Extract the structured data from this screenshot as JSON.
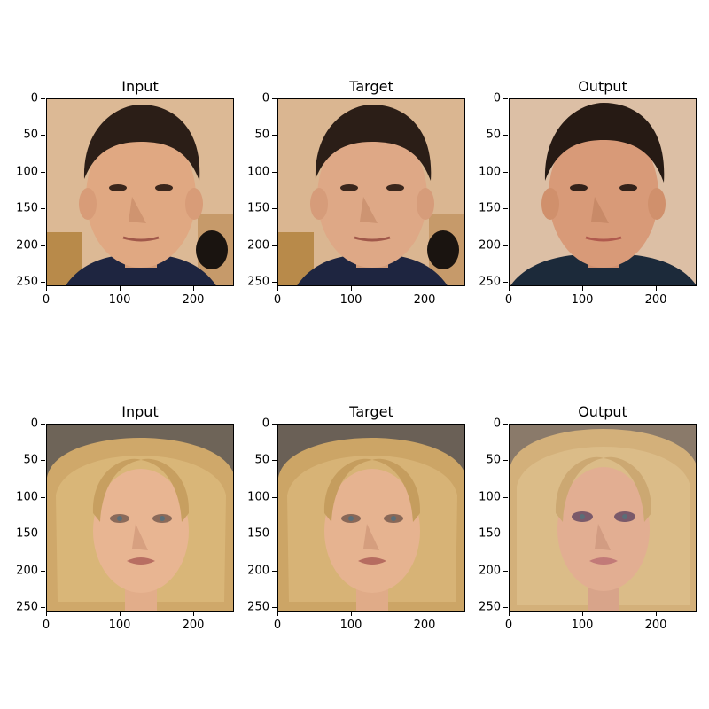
{
  "panels": [
    {
      "title": "Input",
      "subject": "man-portrait"
    },
    {
      "title": "Target",
      "subject": "man-portrait"
    },
    {
      "title": "Output",
      "subject": "man-portrait-generated"
    },
    {
      "title": "Input",
      "subject": "woman-portrait"
    },
    {
      "title": "Target",
      "subject": "woman-portrait"
    },
    {
      "title": "Output",
      "subject": "woman-portrait-generated"
    }
  ],
  "axes": {
    "yticks": [
      "0",
      "50",
      "100",
      "150",
      "200",
      "250"
    ],
    "xticks": [
      "0",
      "100",
      "200"
    ]
  },
  "colors": {
    "man_bg": "#d9b48c",
    "man_skin": "#e0a882",
    "man_hair": "#2b1e17",
    "man_shirt": "#1e2540",
    "woman_bg": "#6e6458",
    "woman_hair": "#cfa86a",
    "woman_skin": "#e8b592"
  }
}
